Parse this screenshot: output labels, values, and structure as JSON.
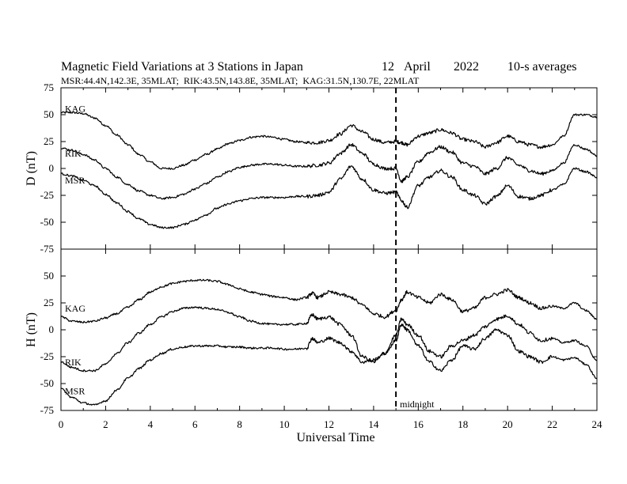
{
  "header": {
    "title": "Magnetic Field Variations at 3 Stations in Japan",
    "date_day": "12",
    "date_month": "April",
    "date_year": "2022",
    "averaging": "10-s averages",
    "stations_line": "MSR:44.4N,142.3E, 35MLAT;  RIK:43.5N,143.8E, 35MLAT;  KAG:31.5N,130.7E, 22MLAT"
  },
  "chart_data": {
    "type": "line",
    "xlabel": "Universal Time",
    "xlim": [
      0,
      24
    ],
    "xticks": [
      0,
      2,
      4,
      6,
      8,
      10,
      12,
      14,
      16,
      18,
      20,
      22,
      24
    ],
    "marker": {
      "x": 15,
      "label": "midnight",
      "style": "dashed"
    },
    "colors": {
      "line": "#000000",
      "frame": "#000000"
    },
    "panels": [
      {
        "ylabel": "D (nT)",
        "ylim": [
          -75,
          75
        ],
        "yticks": [
          75,
          50,
          25,
          0,
          -25,
          -50,
          -75
        ],
        "series": [
          {
            "name": "KAG",
            "x": [
              0,
              0.5,
              1,
              1.5,
              2,
              2.5,
              3,
              3.5,
              4,
              4.5,
              5,
              5.5,
              6,
              6.5,
              7,
              7.5,
              8,
              8.5,
              9,
              9.5,
              10,
              10.5,
              11,
              11.5,
              12,
              12.5,
              13,
              13.5,
              14,
              14.5,
              15,
              15.25,
              15.5,
              16,
              16.5,
              17,
              17.5,
              18,
              18.5,
              19,
              19.5,
              20,
              20.5,
              21,
              21.5,
              22,
              22.5,
              23,
              23.5,
              24
            ],
            "values": [
              52,
              52,
              51,
              47,
              40,
              31,
              22,
              13,
              6,
              0,
              0,
              3,
              8,
              13,
              18,
              23,
              26,
              29,
              30,
              29,
              27,
              25,
              24,
              24,
              26,
              32,
              40,
              34,
              27,
              24,
              25,
              24,
              22,
              30,
              33,
              36,
              33,
              27,
              25,
              20,
              24,
              30,
              25,
              22,
              20,
              22,
              30,
              50,
              50,
              48
            ]
          },
          {
            "name": "RIK",
            "x": [
              0,
              0.5,
              1,
              1.5,
              2,
              2.5,
              3,
              3.5,
              4,
              4.5,
              5,
              5.5,
              6,
              6.5,
              7,
              7.5,
              8,
              8.5,
              9,
              9.5,
              10,
              10.5,
              11,
              11.5,
              12,
              12.5,
              13,
              13.5,
              14,
              14.5,
              15,
              15.25,
              15.5,
              16,
              16.5,
              17,
              17.5,
              18,
              18.5,
              19,
              19.5,
              20,
              20.5,
              21,
              21.5,
              22,
              22.5,
              23,
              23.5,
              24
            ],
            "values": [
              19,
              17,
              13,
              8,
              0,
              -8,
              -15,
              -21,
              -25,
              -28,
              -27,
              -24,
              -19,
              -14,
              -8,
              -3,
              1,
              3,
              4,
              4,
              3,
              2,
              2,
              3,
              5,
              14,
              22,
              14,
              4,
              0,
              0,
              -12,
              -8,
              6,
              15,
              20,
              15,
              5,
              2,
              -5,
              0,
              10,
              3,
              -2,
              -5,
              -2,
              5,
              22,
              18,
              12
            ]
          },
          {
            "name": "MSR",
            "x": [
              0,
              0.5,
              1,
              1.5,
              2,
              2.5,
              3,
              3.5,
              4,
              4.5,
              5,
              5.5,
              6,
              6.5,
              7,
              7.5,
              8,
              8.5,
              9,
              9.5,
              10,
              10.5,
              11,
              11.5,
              12,
              12.5,
              13,
              13.5,
              14,
              14.5,
              15,
              15.25,
              15.5,
              16,
              16.5,
              17,
              17.5,
              18,
              18.5,
              19,
              19.5,
              20,
              20.5,
              21,
              21.5,
              22,
              22.5,
              23,
              23.5,
              24
            ],
            "values": [
              -5,
              -7,
              -11,
              -16,
              -24,
              -32,
              -40,
              -47,
              -52,
              -55,
              -55,
              -52,
              -48,
              -43,
              -37,
              -33,
              -30,
              -28,
              -27,
              -27,
              -27,
              -26,
              -26,
              -25,
              -22,
              -10,
              2,
              -10,
              -20,
              -23,
              -22,
              -30,
              -36,
              -16,
              -8,
              -2,
              -8,
              -20,
              -25,
              -33,
              -26,
              -16,
              -26,
              -28,
              -25,
              -20,
              -15,
              0,
              -3,
              -8
            ]
          }
        ]
      },
      {
        "ylabel": "H (nT)",
        "ylim": [
          -75,
          75
        ],
        "yticks": [
          50,
          25,
          0,
          -25,
          -50,
          -75
        ],
        "series": [
          {
            "name": "KAG",
            "x": [
              0,
              0.5,
              1,
              1.5,
              2,
              2.5,
              3,
              3.5,
              4,
              4.5,
              5,
              5.5,
              6,
              6.5,
              7,
              7.5,
              8,
              8.5,
              9,
              9.5,
              10,
              10.5,
              11,
              11.25,
              11.5,
              12,
              12.5,
              13,
              13.5,
              14,
              14.5,
              15,
              15.25,
              15.5,
              16,
              16.5,
              17,
              17.5,
              18,
              18.5,
              19,
              19.5,
              20,
              20.5,
              21,
              21.5,
              22,
              22.5,
              23,
              23.5,
              24
            ],
            "values": [
              12,
              8,
              7,
              8,
              11,
              15,
              21,
              28,
              35,
              40,
              43,
              45,
              46,
              46,
              45,
              42,
              38,
              35,
              33,
              31,
              30,
              28,
              30,
              34,
              30,
              35,
              33,
              30,
              23,
              15,
              12,
              18,
              28,
              35,
              30,
              25,
              33,
              28,
              17,
              20,
              30,
              33,
              37,
              30,
              25,
              20,
              22,
              20,
              25,
              18,
              10
            ]
          },
          {
            "name": "RIK",
            "x": [
              0,
              0.5,
              1,
              1.5,
              2,
              2.5,
              3,
              3.5,
              4,
              4.5,
              5,
              5.5,
              6,
              6.5,
              7,
              7.5,
              8,
              8.5,
              9,
              9.5,
              10,
              10.5,
              11,
              11.25,
              11.5,
              12,
              12.5,
              13,
              13.5,
              14,
              14.5,
              15,
              15.25,
              15.5,
              16,
              16.5,
              17,
              17.5,
              18,
              18.5,
              19,
              19.5,
              20,
              20.5,
              21,
              21.5,
              22,
              22.5,
              23,
              23.5,
              24
            ],
            "values": [
              -30,
              -35,
              -38,
              -38,
              -32,
              -22,
              -12,
              -3,
              5,
              12,
              17,
              20,
              21,
              20,
              19,
              16,
              12,
              8,
              6,
              5,
              5,
              5,
              6,
              14,
              10,
              12,
              5,
              -5,
              -25,
              -30,
              -22,
              -5,
              10,
              5,
              -5,
              -20,
              -25,
              -15,
              -10,
              -5,
              3,
              10,
              13,
              5,
              -3,
              -10,
              -8,
              -12,
              -10,
              -15,
              -28
            ]
          },
          {
            "name": "MSR",
            "x": [
              0,
              0.5,
              1,
              1.5,
              2,
              2.5,
              3,
              3.5,
              4,
              4.5,
              5,
              5.5,
              6,
              6.5,
              7,
              7.5,
              8,
              8.5,
              9,
              9.5,
              10,
              10.5,
              11,
              11.25,
              11.5,
              12,
              12.5,
              13,
              13.5,
              14,
              14.5,
              15,
              15.25,
              15.5,
              16,
              16.5,
              17,
              17.5,
              18,
              18.5,
              19,
              19.5,
              20,
              20.5,
              21,
              21.5,
              22,
              22.5,
              23,
              23.5,
              24
            ],
            "values": [
              -55,
              -63,
              -68,
              -70,
              -66,
              -56,
              -45,
              -36,
              -28,
              -22,
              -18,
              -16,
              -15,
              -15,
              -15,
              -16,
              -16,
              -17,
              -17,
              -17,
              -18,
              -18,
              -17,
              -8,
              -12,
              -8,
              -12,
              -20,
              -30,
              -28,
              -22,
              -10,
              5,
              0,
              -15,
              -30,
              -38,
              -28,
              -15,
              -18,
              -8,
              0,
              -5,
              -20,
              -25,
              -30,
              -25,
              -28,
              -26,
              -32,
              -45
            ]
          }
        ]
      }
    ]
  }
}
